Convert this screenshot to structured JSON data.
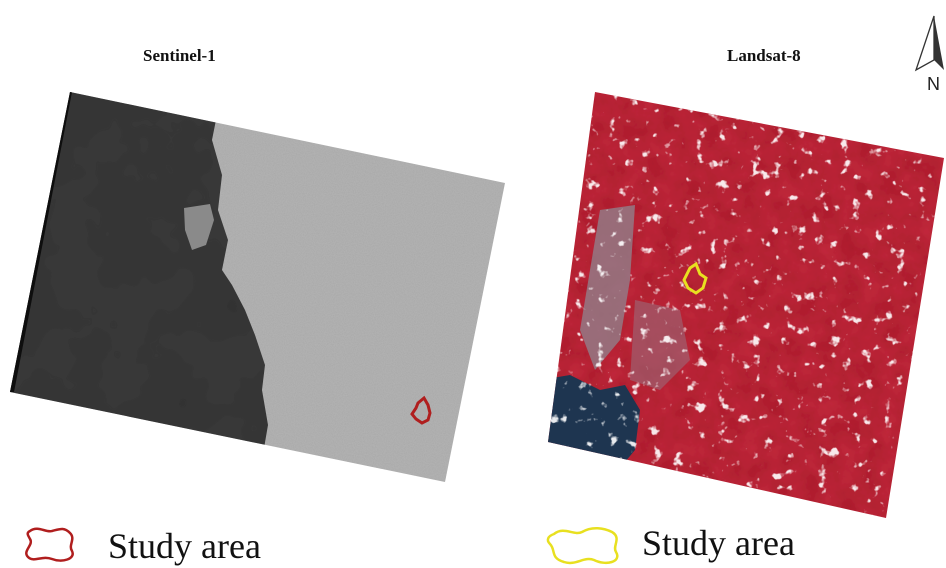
{
  "panels": {
    "sentinel": {
      "title": "Sentinel-1"
    },
    "landsat": {
      "title": "Landsat-8"
    }
  },
  "north_arrow": {
    "label": "N",
    "icon": "north-arrow-icon"
  },
  "legend": {
    "sentinel": {
      "label": "Study area",
      "color": "#b01e1e"
    },
    "landsat": {
      "label": "Study area",
      "color": "#e8e020"
    }
  },
  "colors": {
    "sar_water": "#3a3a3a",
    "sar_land": "#a8a8a8",
    "false_color_land": "#c2283c",
    "sea": "#1e3550"
  }
}
